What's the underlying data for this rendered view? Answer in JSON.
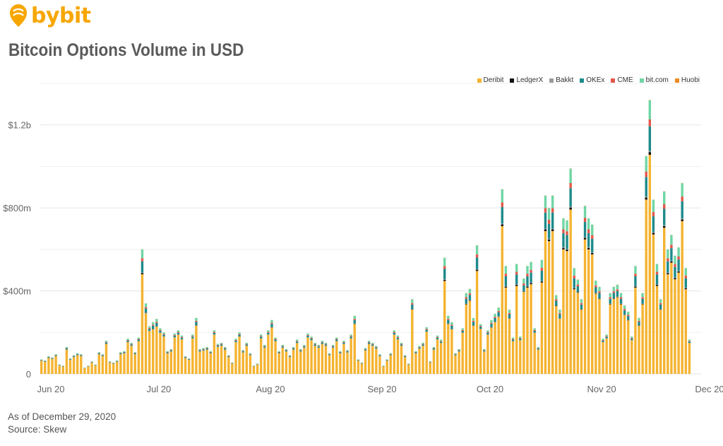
{
  "brand": {
    "name": "bybit",
    "color": "#f7a600"
  },
  "chart_data": {
    "type": "bar",
    "stacked": true,
    "title": "Bitcoin Options Volume in USD",
    "y_ticks": [
      {
        "value": 0,
        "label": "0"
      },
      {
        "value": 400000000,
        "label": "$400m"
      },
      {
        "value": 800000000,
        "label": "$800m"
      },
      {
        "value": 1200000000,
        "label": "$1.2b"
      }
    ],
    "ylim": [
      0,
      1400000000
    ],
    "grid": true,
    "legend_position": "top-right",
    "x_range": [
      "2020-06-01",
      "2020-12-01"
    ],
    "x_ticks": [
      {
        "date": "2020-06-01",
        "label": "Jun 20"
      },
      {
        "date": "2020-07-01",
        "label": "Jul 20"
      },
      {
        "date": "2020-08-01",
        "label": "Aug 20"
      },
      {
        "date": "2020-09-01",
        "label": "Sep 20"
      },
      {
        "date": "2020-10-01",
        "label": "Oct 20"
      },
      {
        "date": "2020-11-01",
        "label": "Nov 20"
      },
      {
        "date": "2020-12-01",
        "label": "Dec 20"
      }
    ],
    "series": [
      {
        "name": "Deribit",
        "color": "#f5b330"
      },
      {
        "name": "LedgerX",
        "color": "#111111"
      },
      {
        "name": "Bakkt",
        "color": "#9a9a9a"
      },
      {
        "name": "OKEx",
        "color": "#1e8a8a"
      },
      {
        "name": "CME",
        "color": "#e2584a"
      },
      {
        "name": "bit.com",
        "color": "#6fd6a4"
      },
      {
        "name": "Huobi",
        "color": "#f08a24"
      }
    ],
    "totals": [
      [
        0,
        70
      ],
      [
        1,
        65
      ],
      [
        2,
        85
      ],
      [
        3,
        80
      ],
      [
        4,
        95
      ],
      [
        5,
        45
      ],
      [
        6,
        40
      ],
      [
        7,
        130
      ],
      [
        8,
        75
      ],
      [
        9,
        90
      ],
      [
        10,
        100
      ],
      [
        11,
        95
      ],
      [
        12,
        30
      ],
      [
        13,
        40
      ],
      [
        14,
        60
      ],
      [
        15,
        45
      ],
      [
        16,
        105
      ],
      [
        17,
        95
      ],
      [
        18,
        160
      ],
      [
        19,
        60
      ],
      [
        20,
        55
      ],
      [
        21,
        65
      ],
      [
        22,
        105
      ],
      [
        23,
        110
      ],
      [
        24,
        170
      ],
      [
        25,
        150
      ],
      [
        26,
        105
      ],
      [
        27,
        175
      ],
      [
        28,
        600
      ],
      [
        29,
        340
      ],
      [
        30,
        230
      ],
      [
        31,
        250
      ],
      [
        32,
        265
      ],
      [
        33,
        220
      ],
      [
        34,
        200
      ],
      [
        35,
        110
      ],
      [
        36,
        120
      ],
      [
        37,
        195
      ],
      [
        38,
        210
      ],
      [
        39,
        185
      ],
      [
        40,
        85
      ],
      [
        41,
        75
      ],
      [
        42,
        190
      ],
      [
        43,
        270
      ],
      [
        44,
        120
      ],
      [
        45,
        125
      ],
      [
        46,
        130
      ],
      [
        47,
        110
      ],
      [
        48,
        210
      ],
      [
        49,
        145
      ],
      [
        50,
        150
      ],
      [
        51,
        130
      ],
      [
        52,
        90
      ],
      [
        53,
        55
      ],
      [
        54,
        170
      ],
      [
        55,
        200
      ],
      [
        56,
        115
      ],
      [
        57,
        150
      ],
      [
        58,
        100
      ],
      [
        59,
        40
      ],
      [
        60,
        50
      ],
      [
        61,
        190
      ],
      [
        62,
        140
      ],
      [
        63,
        210
      ],
      [
        64,
        260
      ],
      [
        65,
        175
      ],
      [
        66,
        110
      ],
      [
        67,
        140
      ],
      [
        68,
        120
      ],
      [
        69,
        90
      ],
      [
        70,
        130
      ],
      [
        71,
        165
      ],
      [
        72,
        120
      ],
      [
        73,
        140
      ],
      [
        74,
        195
      ],
      [
        75,
        180
      ],
      [
        76,
        150
      ],
      [
        77,
        140
      ],
      [
        78,
        160
      ],
      [
        79,
        150
      ],
      [
        80,
        100
      ],
      [
        81,
        140
      ],
      [
        82,
        175
      ],
      [
        83,
        110
      ],
      [
        84,
        160
      ],
      [
        85,
        115
      ],
      [
        86,
        190
      ],
      [
        87,
        280
      ],
      [
        88,
        70
      ],
      [
        89,
        55
      ],
      [
        90,
        125
      ],
      [
        91,
        160
      ],
      [
        92,
        150
      ],
      [
        93,
        135
      ],
      [
        94,
        95
      ],
      [
        95,
        40
      ],
      [
        96,
        70
      ],
      [
        97,
        100
      ],
      [
        98,
        210
      ],
      [
        99,
        185
      ],
      [
        100,
        150
      ],
      [
        101,
        90
      ],
      [
        102,
        50
      ],
      [
        103,
        360
      ],
      [
        104,
        110
      ],
      [
        105,
        135
      ],
      [
        106,
        150
      ],
      [
        107,
        225
      ],
      [
        108,
        60
      ],
      [
        109,
        130
      ],
      [
        110,
        185
      ],
      [
        111,
        165
      ],
      [
        112,
        560
      ],
      [
        113,
        280
      ],
      [
        114,
        250
      ],
      [
        115,
        100
      ],
      [
        116,
        120
      ],
      [
        117,
        220
      ],
      [
        118,
        390
      ],
      [
        119,
        410
      ],
      [
        120,
        270
      ],
      [
        121,
        620
      ],
      [
        122,
        240
      ],
      [
        123,
        120
      ],
      [
        124,
        210
      ],
      [
        125,
        260
      ],
      [
        126,
        290
      ],
      [
        127,
        320
      ],
      [
        128,
        890
      ],
      [
        129,
        520
      ],
      [
        130,
        310
      ],
      [
        131,
        175
      ],
      [
        132,
        530
      ],
      [
        133,
        180
      ],
      [
        134,
        460
      ],
      [
        135,
        520
      ],
      [
        136,
        540
      ],
      [
        137,
        220
      ],
      [
        138,
        130
      ],
      [
        139,
        550
      ],
      [
        140,
        860
      ],
      [
        141,
        800
      ],
      [
        142,
        860
      ],
      [
        143,
        380
      ],
      [
        144,
        310
      ],
      [
        145,
        750
      ],
      [
        146,
        740
      ],
      [
        147,
        990
      ],
      [
        148,
        510
      ],
      [
        149,
        455
      ],
      [
        150,
        360
      ],
      [
        151,
        810
      ],
      [
        152,
        750
      ],
      [
        153,
        720
      ],
      [
        154,
        450
      ],
      [
        155,
        420
      ],
      [
        156,
        170
      ],
      [
        157,
        190
      ],
      [
        158,
        390
      ],
      [
        159,
        420
      ],
      [
        160,
        430
      ],
      [
        161,
        390
      ],
      [
        162,
        330
      ],
      [
        163,
        300
      ],
      [
        164,
        180
      ],
      [
        165,
        520
      ],
      [
        166,
        270
      ],
      [
        167,
        390
      ],
      [
        168,
        1050
      ],
      [
        169,
        1320
      ],
      [
        170,
        840
      ],
      [
        171,
        530
      ],
      [
        172,
        360
      ],
      [
        173,
        880
      ],
      [
        174,
        600
      ],
      [
        175,
        670
      ],
      [
        176,
        570
      ],
      [
        177,
        610
      ],
      [
        178,
        920
      ],
      [
        179,
        510
      ],
      [
        180,
        165
      ]
    ],
    "footer_lines": [
      "As of December 29, 2020",
      "Source: Skew"
    ]
  }
}
